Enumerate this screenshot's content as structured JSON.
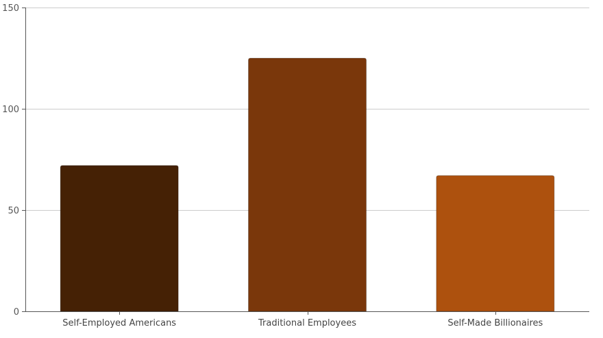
{
  "chart_data": {
    "type": "bar",
    "categories": [
      "Self-Employed Americans",
      "Traditional Employees",
      "Self-Made Billionaires"
    ],
    "values": [
      72,
      125,
      67
    ],
    "colors": [
      "#452105",
      "#7a370b",
      "#ad510e"
    ],
    "title": "",
    "xlabel": "",
    "ylabel": "",
    "ylim": [
      0,
      150
    ],
    "yticks": [
      0,
      50,
      100,
      150
    ],
    "grid": true,
    "legend": "none"
  }
}
